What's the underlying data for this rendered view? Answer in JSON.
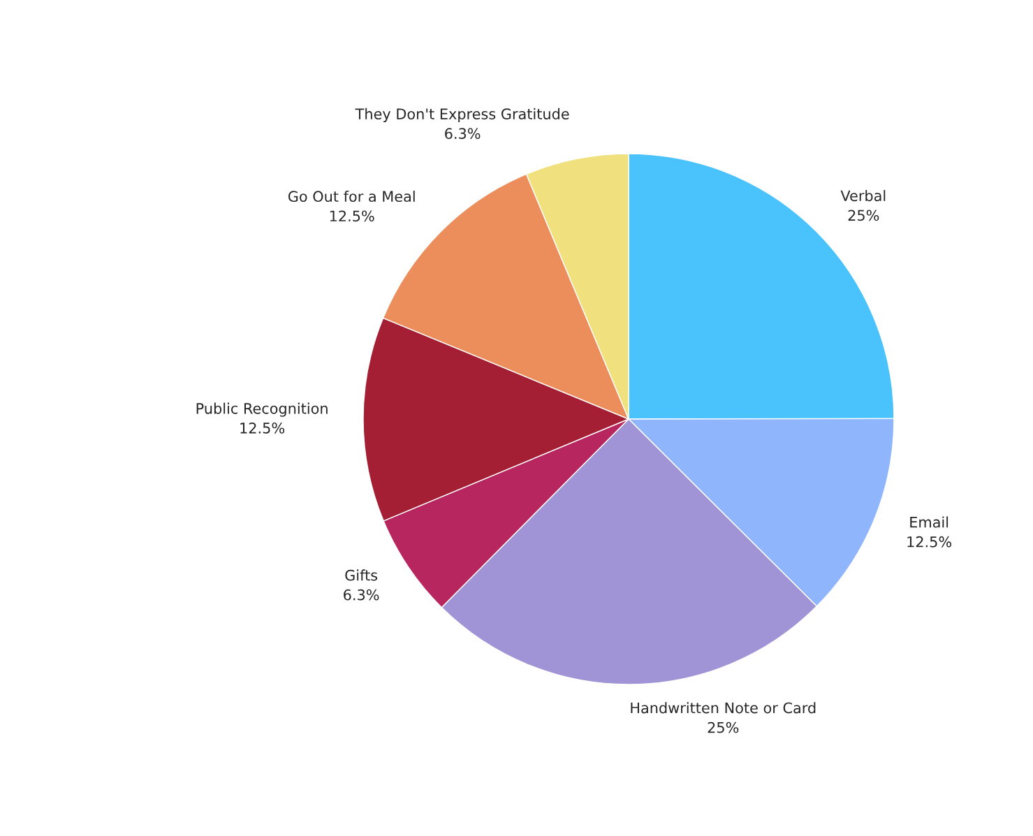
{
  "chart_data": {
    "type": "pie",
    "categories": [
      "Verbal",
      "Email",
      "Handwritten Note or Card",
      "Gifts",
      "Public Recognition",
      "Go Out for a Meal",
      "They Don't Express Gratitude"
    ],
    "values": [
      25,
      12.5,
      25,
      6.3,
      12.5,
      12.5,
      6.3
    ],
    "value_labels": [
      "25%",
      "12.5%",
      "25%",
      "6.3%",
      "12.5%",
      "12.5%",
      "6.3%"
    ],
    "colors": [
      "#4ac2fc",
      "#8fb6fc",
      "#a093d6",
      "#b7265e",
      "#a41f33",
      "#ec8d5c",
      "#f1e07e"
    ],
    "legend": false
  }
}
